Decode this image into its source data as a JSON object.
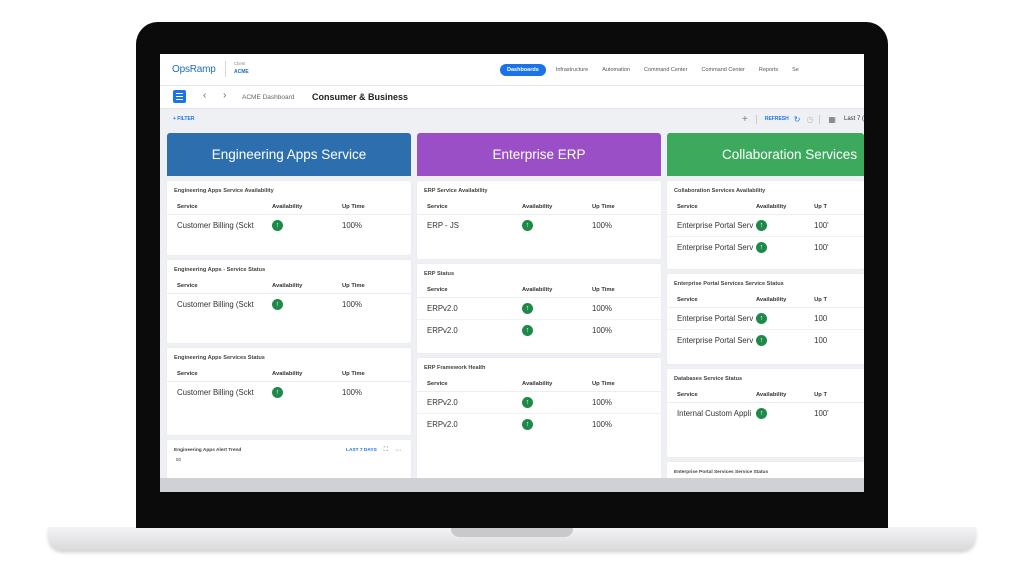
{
  "header": {
    "logo": "OpsRamp",
    "client_label": "Client",
    "client_name": "ACME",
    "nav": [
      {
        "label": "Dashboards",
        "active": true
      },
      {
        "label": "Infrastructure"
      },
      {
        "label": "Automation"
      },
      {
        "label": "Command Center"
      },
      {
        "label": "Command Center"
      },
      {
        "label": "Reports"
      },
      {
        "label": "Se"
      }
    ]
  },
  "breadcrumb": {
    "parent": "ACME Dashboard",
    "current": "Consumer & Business"
  },
  "toolbar": {
    "filter": "+ FILTER",
    "refresh": "REFRESH",
    "range": "Last 7 ("
  },
  "columns": [
    {
      "title": "Engineering Apps Service",
      "color": "#2d6fae",
      "widgets": [
        {
          "title": "Engineering Apps Service Availability",
          "headers": [
            "Service",
            "Availability",
            "Up Time"
          ],
          "rows": [
            {
              "service": "Customer Billing (Sckt",
              "uptime": "100%"
            }
          ]
        },
        {
          "title": "Engineering Apps - Service Status",
          "headers": [
            "Service",
            "Availability",
            "Up Time"
          ],
          "rows": [
            {
              "service": "Customer Billing (Sckt",
              "uptime": "100%"
            }
          ]
        },
        {
          "title": "Engineering Apps Services Status",
          "headers": [
            "Service",
            "Availability",
            "Up Time"
          ],
          "rows": [
            {
              "service": "Customer Billing (Sckt",
              "uptime": "100%"
            }
          ]
        }
      ],
      "trend": {
        "title": "Engineering Apps Alert Trend",
        "range": "LAST 7 DAYS",
        "y_label": "50"
      }
    },
    {
      "title": "Enterprise ERP",
      "color": "#9a4fc7",
      "widgets": [
        {
          "title": "ERP Service Availability",
          "headers": [
            "Service",
            "Availability",
            "Up Time"
          ],
          "rows": [
            {
              "service": "ERP - JS",
              "uptime": "100%"
            }
          ]
        },
        {
          "title": "ERP Status",
          "headers": [
            "Service",
            "Availability",
            "Up Time"
          ],
          "rows": [
            {
              "service": "ERPv2.0",
              "uptime": "100%"
            },
            {
              "service": "ERPv2.0",
              "uptime": "100%"
            }
          ]
        },
        {
          "title": "ERP Framework Health",
          "headers": [
            "Service",
            "Availability",
            "Up Time"
          ],
          "rows": [
            {
              "service": "ERPv2.0",
              "uptime": "100%"
            },
            {
              "service": "ERPv2.0",
              "uptime": "100%"
            }
          ]
        }
      ]
    },
    {
      "title": "Collaboration Services",
      "color": "#3ca95c",
      "widgets": [
        {
          "title": "Collaboration Services Availability",
          "headers": [
            "Service",
            "Availability",
            "Up T"
          ],
          "rows": [
            {
              "service": "Enterprise Portal Serv",
              "uptime": "100'"
            },
            {
              "service": "Enterprise Portal Serv",
              "uptime": "100'"
            }
          ]
        },
        {
          "title": "Enterprise Portal Services Service Status",
          "headers": [
            "Service",
            "Availability",
            "Up T"
          ],
          "rows": [
            {
              "service": "Enterprise Portal Serv",
              "uptime": "100"
            },
            {
              "service": "Enterprise Portal Serv",
              "uptime": "100"
            }
          ]
        },
        {
          "title": "Databases Service Status",
          "headers": [
            "Service",
            "Availability",
            "Up T"
          ],
          "rows": [
            {
              "service": "Internal Custom Appli",
              "uptime": "100'"
            }
          ]
        }
      ],
      "trend": {
        "title": "Enterprise Portal Services Service Status"
      }
    }
  ],
  "icons": {
    "availability": "up-arrow-icon",
    "menu": "hamburger-icon"
  }
}
